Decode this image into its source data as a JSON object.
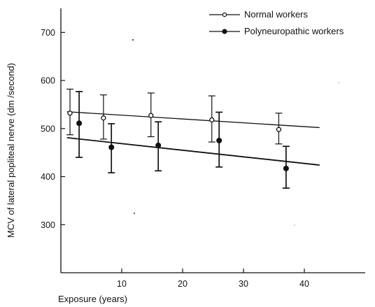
{
  "chart_data": {
    "type": "scatter",
    "title": "",
    "xlabel": "Exposure (years)",
    "ylabel": "MCV of lateral popliteal nerve (dm /second)",
    "xlim": [
      0,
      50
    ],
    "ylim": [
      200,
      750
    ],
    "x_ticks": [
      10,
      20,
      30,
      40
    ],
    "y_ticks": [
      300,
      400,
      500,
      600,
      700
    ],
    "grid": false,
    "legend_position": "top-right",
    "series": [
      {
        "name": "Normal workers",
        "marker": "open-circle",
        "points": [
          {
            "x": 1.5,
            "y": 532,
            "err_low": 487,
            "err_high": 582
          },
          {
            "x": 7,
            "y": 522,
            "err_low": 478,
            "err_high": 570
          },
          {
            "x": 14.8,
            "y": 527,
            "err_low": 483,
            "err_high": 574
          },
          {
            "x": 24.8,
            "y": 518,
            "err_low": 472,
            "err_high": 568
          },
          {
            "x": 35.8,
            "y": 498,
            "err_low": 468,
            "err_high": 532
          }
        ],
        "trend": {
          "x0": 1,
          "y0": 535,
          "x1": 42.5,
          "y1": 502
        }
      },
      {
        "name": "Polyneuropathic workers",
        "marker": "filled-circle",
        "points": [
          {
            "x": 3,
            "y": 511,
            "err_low": 440,
            "err_high": 577
          },
          {
            "x": 8.3,
            "y": 461,
            "err_low": 408,
            "err_high": 510
          },
          {
            "x": 16,
            "y": 465,
            "err_low": 412,
            "err_high": 514
          },
          {
            "x": 26,
            "y": 475,
            "err_low": 420,
            "err_high": 534
          },
          {
            "x": 37,
            "y": 417,
            "err_low": 376,
            "err_high": 463
          }
        ],
        "trend": {
          "x0": 1,
          "y0": 481,
          "x1": 42.5,
          "y1": 424
        }
      }
    ]
  }
}
